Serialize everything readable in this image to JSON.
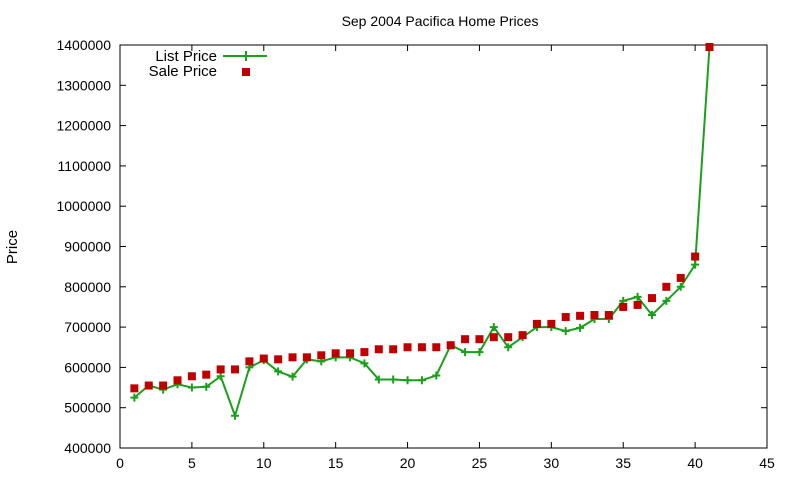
{
  "chart_data": {
    "type": "line",
    "title": "Sep 2004 Pacifica Home Prices",
    "xlabel": "",
    "ylabel": "Price",
    "xlim": [
      0,
      45
    ],
    "ylim": [
      400000,
      1400000
    ],
    "xticks": [
      0,
      5,
      10,
      15,
      20,
      25,
      30,
      35,
      40,
      45
    ],
    "yticks": [
      400000,
      500000,
      600000,
      700000,
      800000,
      900000,
      1000000,
      1100000,
      1200000,
      1300000,
      1400000
    ],
    "grid": false,
    "legend_position": "top-left",
    "x": [
      1,
      2,
      3,
      4,
      5,
      6,
      7,
      8,
      9,
      10,
      11,
      12,
      13,
      14,
      15,
      16,
      17,
      18,
      19,
      20,
      21,
      22,
      23,
      24,
      25,
      26,
      27,
      28,
      29,
      30,
      31,
      32,
      33,
      34,
      35,
      36,
      37,
      38,
      39,
      40,
      41
    ],
    "series": [
      {
        "name": "List Price",
        "style": "line-plus",
        "color": "#1aa01a",
        "values": [
          525000,
          555000,
          545000,
          558000,
          550000,
          552000,
          578000,
          480000,
          600000,
          618000,
          590000,
          577000,
          620000,
          615000,
          625000,
          625000,
          610000,
          570000,
          570000,
          568000,
          568000,
          580000,
          655000,
          638000,
          638000,
          700000,
          650000,
          675000,
          700000,
          700000,
          690000,
          698000,
          720000,
          720000,
          765000,
          775000,
          730000,
          765000,
          800000,
          855000,
          1395000
        ]
      },
      {
        "name": "Sale Price",
        "style": "square",
        "color": "#c00000",
        "values": [
          548000,
          555000,
          555000,
          568000,
          578000,
          582000,
          595000,
          595000,
          615000,
          622000,
          620000,
          625000,
          625000,
          630000,
          635000,
          635000,
          638000,
          645000,
          645000,
          650000,
          650000,
          650000,
          655000,
          670000,
          670000,
          675000,
          675000,
          680000,
          708000,
          708000,
          725000,
          728000,
          730000,
          730000,
          750000,
          755000,
          772000,
          800000,
          822000,
          875000,
          1395000
        ]
      }
    ]
  }
}
